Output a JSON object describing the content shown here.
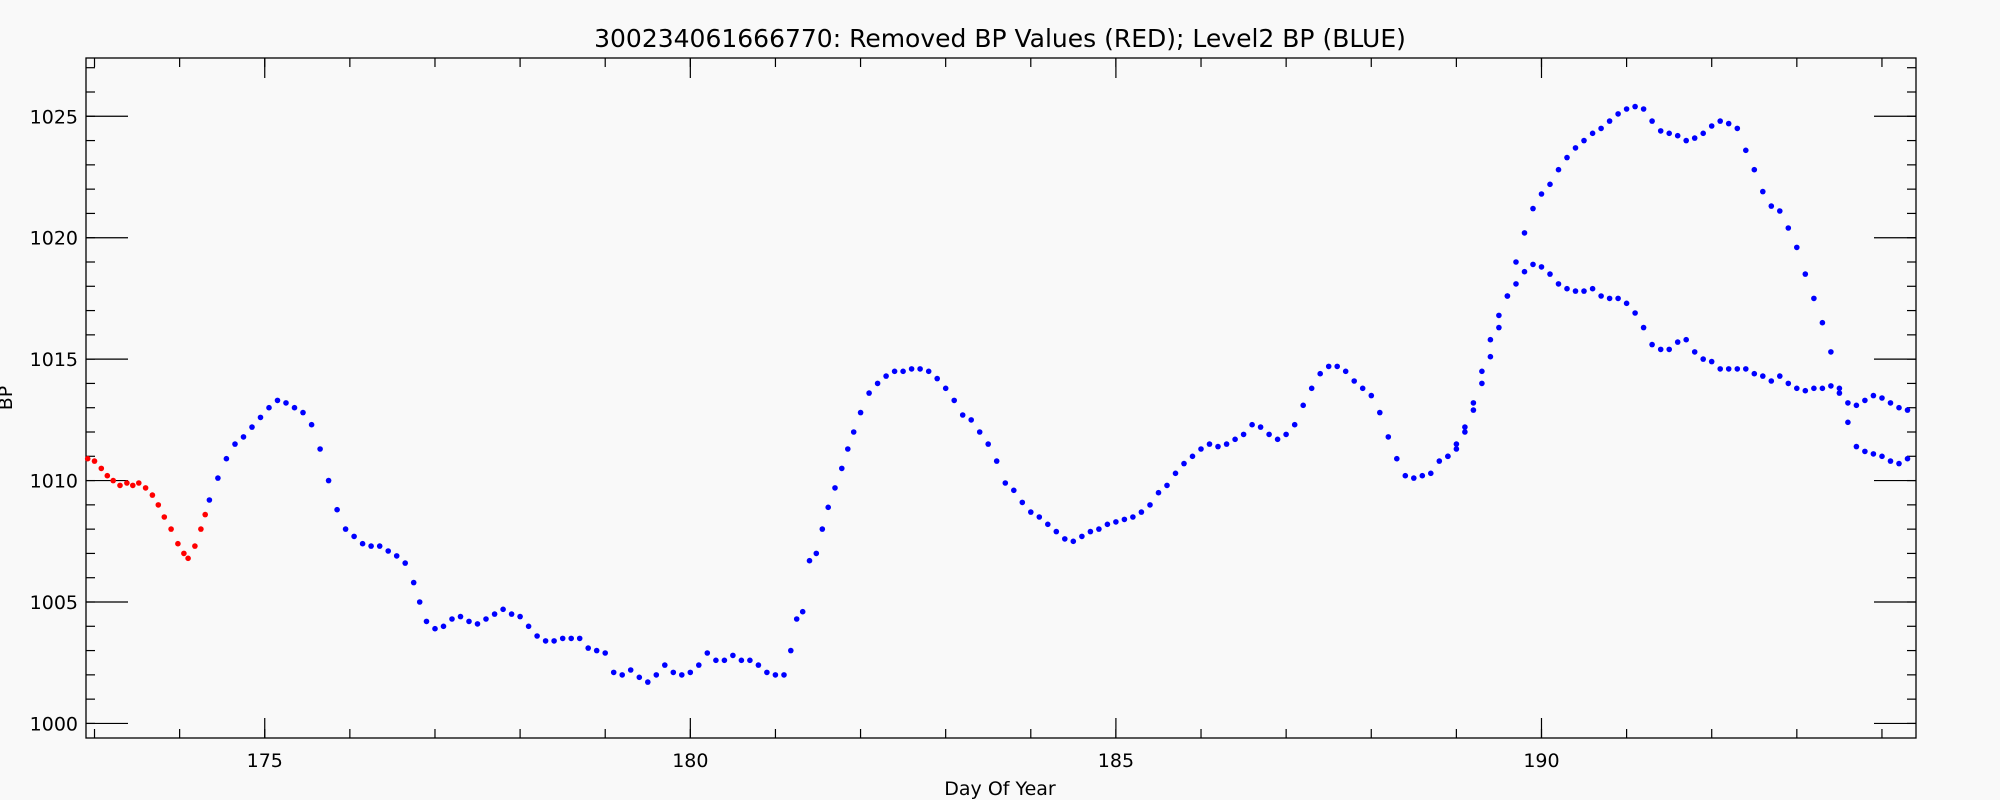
{
  "chart_data": {
    "type": "scatter",
    "title": "300234061666770: Removed BP Values (RED); Level2 BP (BLUE)",
    "xlabel": "Day Of Year",
    "ylabel": "BP",
    "xlim": [
      172.9,
      194.4
    ],
    "ylim": [
      999.4,
      1027.4
    ],
    "xticks": [
      175,
      180,
      185,
      190
    ],
    "yticks": [
      1000,
      1005,
      1010,
      1015,
      1020,
      1025
    ],
    "x_minor_step": 1,
    "y_minor_step": 1,
    "grid": false,
    "legend": "none",
    "series": [
      {
        "color": "#ff0000",
        "points": [
          [
            172.92,
            1010.9
          ],
          [
            173.0,
            1010.8
          ],
          [
            173.08,
            1010.5
          ],
          [
            173.15,
            1010.2
          ],
          [
            173.22,
            1010.0
          ],
          [
            173.3,
            1009.8
          ],
          [
            173.38,
            1009.9
          ],
          [
            173.45,
            1009.8
          ],
          [
            173.52,
            1009.9
          ],
          [
            173.6,
            1009.7
          ],
          [
            173.68,
            1009.4
          ],
          [
            173.75,
            1009.0
          ],
          [
            173.82,
            1008.5
          ],
          [
            173.9,
            1008.0
          ],
          [
            173.98,
            1007.4
          ],
          [
            174.05,
            1007.0
          ],
          [
            174.1,
            1006.8
          ],
          [
            174.18,
            1007.3
          ],
          [
            174.25,
            1008.0
          ],
          [
            174.3,
            1008.6
          ]
        ]
      },
      {
        "color": "#0000ff",
        "points": [
          [
            174.35,
            1009.2
          ],
          [
            174.45,
            1010.1
          ],
          [
            174.55,
            1010.9
          ],
          [
            174.65,
            1011.5
          ],
          [
            174.75,
            1011.8
          ],
          [
            174.85,
            1012.2
          ],
          [
            174.95,
            1012.6
          ],
          [
            175.05,
            1013.0
          ],
          [
            175.15,
            1013.3
          ],
          [
            175.25,
            1013.2
          ],
          [
            175.35,
            1013.0
          ],
          [
            175.45,
            1012.8
          ],
          [
            175.55,
            1012.3
          ],
          [
            175.65,
            1011.3
          ],
          [
            175.75,
            1010.0
          ],
          [
            175.85,
            1008.8
          ],
          [
            175.95,
            1008.0
          ],
          [
            176.05,
            1007.7
          ],
          [
            176.15,
            1007.4
          ],
          [
            176.25,
            1007.3
          ],
          [
            176.35,
            1007.3
          ],
          [
            176.45,
            1007.1
          ],
          [
            176.55,
            1006.9
          ],
          [
            176.65,
            1006.6
          ],
          [
            176.75,
            1005.8
          ],
          [
            176.82,
            1005.0
          ],
          [
            176.9,
            1004.2
          ],
          [
            177.0,
            1003.9
          ],
          [
            177.1,
            1004.0
          ],
          [
            177.2,
            1004.3
          ],
          [
            177.3,
            1004.4
          ],
          [
            177.4,
            1004.2
          ],
          [
            177.5,
            1004.1
          ],
          [
            177.6,
            1004.3
          ],
          [
            177.7,
            1004.5
          ],
          [
            177.8,
            1004.7
          ],
          [
            177.9,
            1004.5
          ],
          [
            178.0,
            1004.4
          ],
          [
            178.1,
            1004.0
          ],
          [
            178.2,
            1003.6
          ],
          [
            178.3,
            1003.4
          ],
          [
            178.4,
            1003.4
          ],
          [
            178.5,
            1003.5
          ],
          [
            178.6,
            1003.5
          ],
          [
            178.7,
            1003.5
          ],
          [
            178.8,
            1003.1
          ],
          [
            178.9,
            1003.0
          ],
          [
            179.0,
            1002.9
          ],
          [
            179.1,
            1002.1
          ],
          [
            179.2,
            1002.0
          ],
          [
            179.3,
            1002.2
          ],
          [
            179.4,
            1001.9
          ],
          [
            179.5,
            1001.7
          ],
          [
            179.6,
            1002.0
          ],
          [
            179.7,
            1002.4
          ],
          [
            179.8,
            1002.1
          ],
          [
            179.9,
            1002.0
          ],
          [
            180.0,
            1002.1
          ],
          [
            180.1,
            1002.4
          ],
          [
            180.2,
            1002.9
          ],
          [
            180.3,
            1002.6
          ],
          [
            180.4,
            1002.6
          ],
          [
            180.5,
            1002.8
          ],
          [
            180.6,
            1002.6
          ],
          [
            180.7,
            1002.6
          ],
          [
            180.8,
            1002.4
          ],
          [
            180.9,
            1002.1
          ],
          [
            181.0,
            1002.0
          ],
          [
            181.1,
            1002.0
          ],
          [
            181.18,
            1003.0
          ],
          [
            181.25,
            1004.3
          ],
          [
            181.32,
            1004.6
          ],
          [
            181.4,
            1006.7
          ],
          [
            181.48,
            1007.0
          ],
          [
            181.55,
            1008.0
          ],
          [
            181.62,
            1008.9
          ],
          [
            181.7,
            1009.7
          ],
          [
            181.78,
            1010.5
          ],
          [
            181.85,
            1011.3
          ],
          [
            181.92,
            1012.0
          ],
          [
            182.0,
            1012.8
          ],
          [
            182.1,
            1013.6
          ],
          [
            182.2,
            1014.0
          ],
          [
            182.3,
            1014.3
          ],
          [
            182.4,
            1014.5
          ],
          [
            182.5,
            1014.5
          ],
          [
            182.6,
            1014.6
          ],
          [
            182.7,
            1014.6
          ],
          [
            182.8,
            1014.5
          ],
          [
            182.9,
            1014.2
          ],
          [
            183.0,
            1013.8
          ],
          [
            183.1,
            1013.3
          ],
          [
            183.2,
            1012.7
          ],
          [
            183.3,
            1012.5
          ],
          [
            183.4,
            1012.0
          ],
          [
            183.5,
            1011.5
          ],
          [
            183.6,
            1010.8
          ],
          [
            183.7,
            1009.9
          ],
          [
            183.8,
            1009.6
          ],
          [
            183.9,
            1009.1
          ],
          [
            184.0,
            1008.7
          ],
          [
            184.1,
            1008.5
          ],
          [
            184.2,
            1008.2
          ],
          [
            184.3,
            1007.9
          ],
          [
            184.4,
            1007.6
          ],
          [
            184.5,
            1007.5
          ],
          [
            184.6,
            1007.7
          ],
          [
            184.7,
            1007.9
          ],
          [
            184.8,
            1008.0
          ],
          [
            184.9,
            1008.2
          ],
          [
            185.0,
            1008.3
          ],
          [
            185.1,
            1008.4
          ],
          [
            185.2,
            1008.5
          ],
          [
            185.3,
            1008.7
          ],
          [
            185.4,
            1009.0
          ],
          [
            185.5,
            1009.5
          ],
          [
            185.6,
            1009.8
          ],
          [
            185.7,
            1010.3
          ],
          [
            185.8,
            1010.7
          ],
          [
            185.9,
            1011.0
          ],
          [
            186.0,
            1011.3
          ],
          [
            186.1,
            1011.5
          ],
          [
            186.2,
            1011.4
          ],
          [
            186.3,
            1011.5
          ],
          [
            186.4,
            1011.7
          ],
          [
            186.5,
            1011.9
          ],
          [
            186.6,
            1012.3
          ],
          [
            186.7,
            1012.2
          ],
          [
            186.8,
            1011.9
          ],
          [
            186.9,
            1011.7
          ],
          [
            187.0,
            1011.9
          ],
          [
            187.1,
            1012.3
          ],
          [
            187.2,
            1013.1
          ],
          [
            187.3,
            1013.8
          ],
          [
            187.4,
            1014.4
          ],
          [
            187.5,
            1014.7
          ],
          [
            187.6,
            1014.7
          ],
          [
            187.7,
            1014.5
          ],
          [
            187.8,
            1014.1
          ],
          [
            187.9,
            1013.8
          ],
          [
            188.0,
            1013.5
          ],
          [
            188.1,
            1012.8
          ],
          [
            188.2,
            1011.8
          ],
          [
            188.3,
            1010.9
          ],
          [
            188.4,
            1010.2
          ],
          [
            188.5,
            1010.1
          ],
          [
            188.6,
            1010.2
          ],
          [
            188.7,
            1010.3
          ],
          [
            188.8,
            1010.8
          ],
          [
            188.9,
            1011.0
          ],
          [
            189.0,
            1011.3
          ],
          [
            189.1,
            1012.0
          ],
          [
            189.2,
            1012.9
          ],
          [
            189.3,
            1014.0
          ],
          [
            189.4,
            1015.1
          ],
          [
            189.5,
            1016.3
          ],
          [
            189.6,
            1017.6
          ],
          [
            189.7,
            1019.0
          ],
          [
            189.8,
            1020.2
          ],
          [
            189.9,
            1021.2
          ],
          [
            190.0,
            1021.8
          ],
          [
            190.1,
            1022.2
          ],
          [
            190.2,
            1022.8
          ],
          [
            190.3,
            1023.3
          ],
          [
            190.4,
            1023.7
          ],
          [
            190.5,
            1024.0
          ],
          [
            190.6,
            1024.3
          ],
          [
            190.7,
            1024.5
          ],
          [
            190.8,
            1024.8
          ],
          [
            190.9,
            1025.1
          ],
          [
            191.0,
            1025.3
          ],
          [
            191.1,
            1025.4
          ],
          [
            191.2,
            1025.3
          ],
          [
            191.3,
            1024.8
          ],
          [
            191.4,
            1024.4
          ],
          [
            191.5,
            1024.3
          ],
          [
            191.6,
            1024.2
          ],
          [
            191.7,
            1024.0
          ],
          [
            191.8,
            1024.1
          ],
          [
            191.9,
            1024.3
          ],
          [
            192.0,
            1024.6
          ],
          [
            192.1,
            1024.8
          ],
          [
            192.2,
            1024.7
          ],
          [
            192.3,
            1024.5
          ],
          [
            192.4,
            1023.6
          ],
          [
            192.5,
            1022.8
          ],
          [
            192.6,
            1021.9
          ],
          [
            192.7,
            1021.3
          ],
          [
            192.8,
            1021.1
          ],
          [
            192.9,
            1020.4
          ],
          [
            193.0,
            1019.6
          ],
          [
            193.1,
            1018.5
          ],
          [
            193.2,
            1017.5
          ],
          [
            193.3,
            1016.5
          ],
          [
            193.4,
            1015.3
          ],
          [
            193.5,
            1013.8
          ],
          [
            193.6,
            1012.4
          ],
          [
            193.7,
            1011.4
          ],
          [
            193.8,
            1011.2
          ],
          [
            193.9,
            1011.1
          ],
          [
            194.0,
            1011.0
          ],
          [
            194.1,
            1010.8
          ],
          [
            194.2,
            1010.7
          ],
          [
            194.3,
            1010.9
          ]
        ]
      },
      {
        "color": "#0000ff",
        "points": [
          [
            188.9,
            1011.0
          ],
          [
            189.0,
            1011.5
          ],
          [
            189.1,
            1012.2
          ],
          [
            189.2,
            1013.2
          ],
          [
            189.3,
            1014.5
          ],
          [
            189.4,
            1015.8
          ],
          [
            189.5,
            1016.8
          ],
          [
            189.6,
            1017.6
          ],
          [
            189.7,
            1018.1
          ],
          [
            189.8,
            1018.6
          ],
          [
            189.9,
            1018.9
          ],
          [
            190.0,
            1018.8
          ],
          [
            190.1,
            1018.5
          ],
          [
            190.2,
            1018.1
          ],
          [
            190.3,
            1017.9
          ],
          [
            190.4,
            1017.8
          ],
          [
            190.5,
            1017.8
          ],
          [
            190.6,
            1017.9
          ],
          [
            190.7,
            1017.6
          ],
          [
            190.8,
            1017.5
          ],
          [
            190.9,
            1017.5
          ],
          [
            191.0,
            1017.3
          ],
          [
            191.1,
            1016.9
          ],
          [
            191.2,
            1016.3
          ],
          [
            191.3,
            1015.6
          ],
          [
            191.4,
            1015.4
          ],
          [
            191.5,
            1015.4
          ],
          [
            191.6,
            1015.7
          ],
          [
            191.7,
            1015.8
          ],
          [
            191.8,
            1015.3
          ],
          [
            191.9,
            1015.0
          ],
          [
            192.0,
            1014.9
          ],
          [
            192.1,
            1014.6
          ],
          [
            192.2,
            1014.6
          ],
          [
            192.3,
            1014.6
          ],
          [
            192.4,
            1014.6
          ],
          [
            192.5,
            1014.4
          ],
          [
            192.6,
            1014.3
          ],
          [
            192.7,
            1014.1
          ],
          [
            192.8,
            1014.3
          ],
          [
            192.9,
            1014.0
          ],
          [
            193.0,
            1013.8
          ],
          [
            193.1,
            1013.7
          ],
          [
            193.2,
            1013.8
          ],
          [
            193.3,
            1013.8
          ],
          [
            193.4,
            1013.9
          ],
          [
            193.5,
            1013.6
          ],
          [
            193.6,
            1013.2
          ],
          [
            193.7,
            1013.1
          ],
          [
            193.8,
            1013.3
          ],
          [
            193.9,
            1013.5
          ],
          [
            194.0,
            1013.4
          ],
          [
            194.1,
            1013.2
          ],
          [
            194.2,
            1013.0
          ],
          [
            194.3,
            1012.9
          ]
        ]
      }
    ]
  }
}
